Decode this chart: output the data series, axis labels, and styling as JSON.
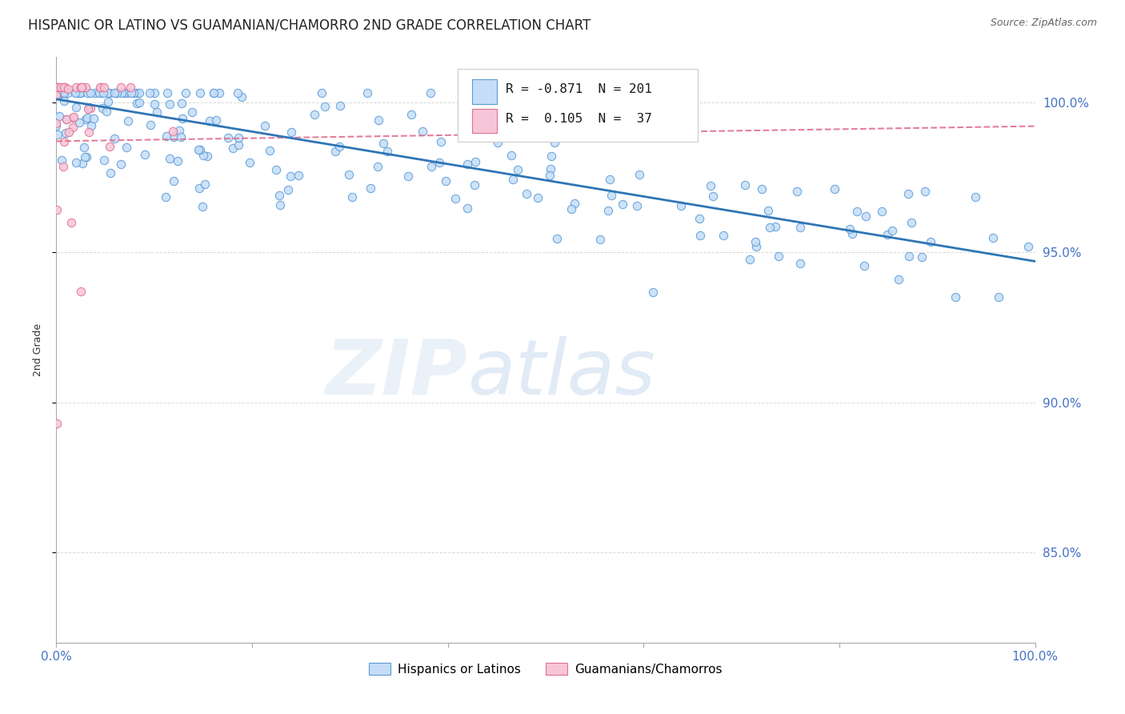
{
  "title": "HISPANIC OR LATINO VS GUAMANIAN/CHAMORRO 2ND GRADE CORRELATION CHART",
  "source_text": "Source: ZipAtlas.com",
  "ylabel": "2nd Grade",
  "xlim": [
    0.0,
    1.0
  ],
  "ylim": [
    0.82,
    1.015
  ],
  "ytick_labels": [
    "85.0%",
    "90.0%",
    "95.0%",
    "100.0%"
  ],
  "ytick_values": [
    0.85,
    0.9,
    0.95,
    1.0
  ],
  "blue_R": -0.871,
  "blue_N": 201,
  "pink_R": 0.105,
  "pink_N": 37,
  "legend_label_blue": "Hispanics or Latinos",
  "legend_label_pink": "Guamanians/Chamorros",
  "blue_face_color": "#c5ddf7",
  "blue_edge_color": "#5b9bd5",
  "pink_face_color": "#f7c5d8",
  "pink_edge_color": "#e07090",
  "blue_line_color": "#2e75b6",
  "pink_line_color": "#e07090",
  "background_color": "#ffffff",
  "grid_color": "#d0d0d0",
  "title_fontsize": 12,
  "axis_label_fontsize": 9,
  "right_tick_color": "#4472c4",
  "bottom_tick_color": "#4472c4"
}
